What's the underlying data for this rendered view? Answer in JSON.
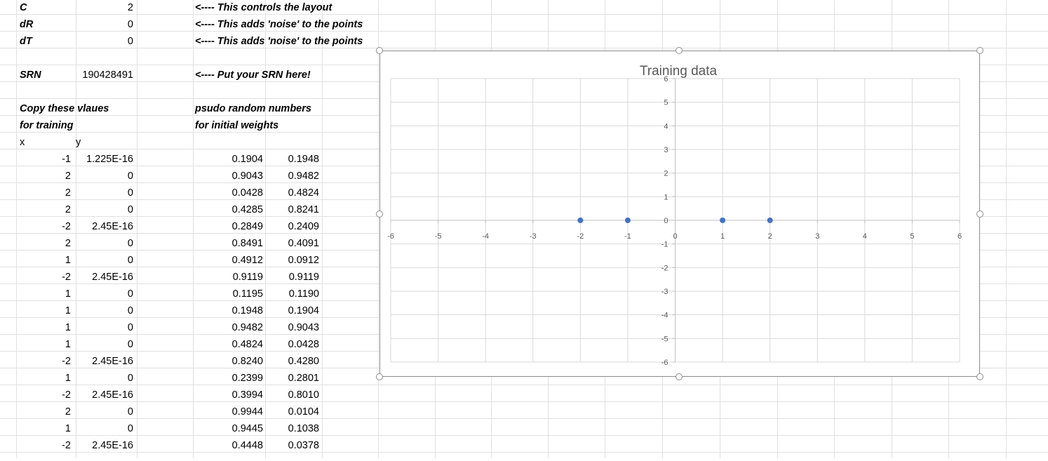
{
  "config": {
    "c": {
      "label": "C",
      "value": "2",
      "note": "<---- This controls the layout"
    },
    "dr": {
      "label": "dR",
      "value": "0",
      "note": "<---- This adds 'noise' to the points"
    },
    "dt": {
      "label": "dT",
      "value": "0",
      "note": "<---- This adds 'noise' to the points"
    },
    "srn": {
      "label": "SRN",
      "value": "190428491",
      "note": "<---- Put your SRN here!"
    }
  },
  "training_header": {
    "line1": "Copy these vlaues",
    "line2": "for training",
    "x": "x",
    "y": "y"
  },
  "weights_header": {
    "line1": "psudo random numbers",
    "line2": "for initial weights"
  },
  "rows": [
    {
      "x": "-1",
      "y": "1.225E-16",
      "w1": "0.1904",
      "w2": "0.1948"
    },
    {
      "x": "2",
      "y": "0",
      "w1": "0.9043",
      "w2": "0.9482"
    },
    {
      "x": "2",
      "y": "0",
      "w1": "0.0428",
      "w2": "0.4824"
    },
    {
      "x": "2",
      "y": "0",
      "w1": "0.4285",
      "w2": "0.8241"
    },
    {
      "x": "-2",
      "y": "2.45E-16",
      "w1": "0.2849",
      "w2": "0.2409"
    },
    {
      "x": "2",
      "y": "0",
      "w1": "0.8491",
      "w2": "0.4091"
    },
    {
      "x": "1",
      "y": "0",
      "w1": "0.4912",
      "w2": "0.0912"
    },
    {
      "x": "-2",
      "y": "2.45E-16",
      "w1": "0.9119",
      "w2": "0.9119"
    },
    {
      "x": "1",
      "y": "0",
      "w1": "0.1195",
      "w2": "0.1190"
    },
    {
      "x": "1",
      "y": "0",
      "w1": "0.1948",
      "w2": "0.1904"
    },
    {
      "x": "1",
      "y": "0",
      "w1": "0.9482",
      "w2": "0.9043"
    },
    {
      "x": "1",
      "y": "0",
      "w1": "0.4824",
      "w2": "0.0428"
    },
    {
      "x": "-2",
      "y": "2.45E-16",
      "w1": "0.8240",
      "w2": "0.4280"
    },
    {
      "x": "1",
      "y": "0",
      "w1": "0.2399",
      "w2": "0.2801"
    },
    {
      "x": "-2",
      "y": "2.45E-16",
      "w1": "0.3994",
      "w2": "0.8010"
    },
    {
      "x": "2",
      "y": "0",
      "w1": "0.9944",
      "w2": "0.0104"
    },
    {
      "x": "1",
      "y": "0",
      "w1": "0.9445",
      "w2": "0.1038"
    },
    {
      "x": "-2",
      "y": "2.45E-16",
      "w1": "0.4448",
      "w2": "0.0378"
    }
  ],
  "chart_data": {
    "type": "scatter",
    "title": "Training data",
    "xlabel": "",
    "ylabel": "",
    "xlim": [
      -6,
      6
    ],
    "ylim": [
      -6,
      6
    ],
    "x_ticks": [
      "-6",
      "-5",
      "-4",
      "-3",
      "-2",
      "-1",
      "0",
      "1",
      "2",
      "3",
      "4",
      "5",
      "6"
    ],
    "y_ticks": [
      "6",
      "5",
      "4",
      "3",
      "2",
      "1",
      "0",
      "-1",
      "-2",
      "-3",
      "-4",
      "-5",
      "-6"
    ],
    "grid": true,
    "legend": "none",
    "series": [
      {
        "points": [
          [
            -2,
            0
          ],
          [
            -1,
            0
          ],
          [
            1,
            0
          ],
          [
            2,
            0
          ]
        ],
        "color": "#4472c4"
      }
    ],
    "colors": {
      "grid": "#d9d9d9",
      "axis": "#bfbfbf",
      "tick_label": "#595959",
      "title": "#595959"
    }
  }
}
